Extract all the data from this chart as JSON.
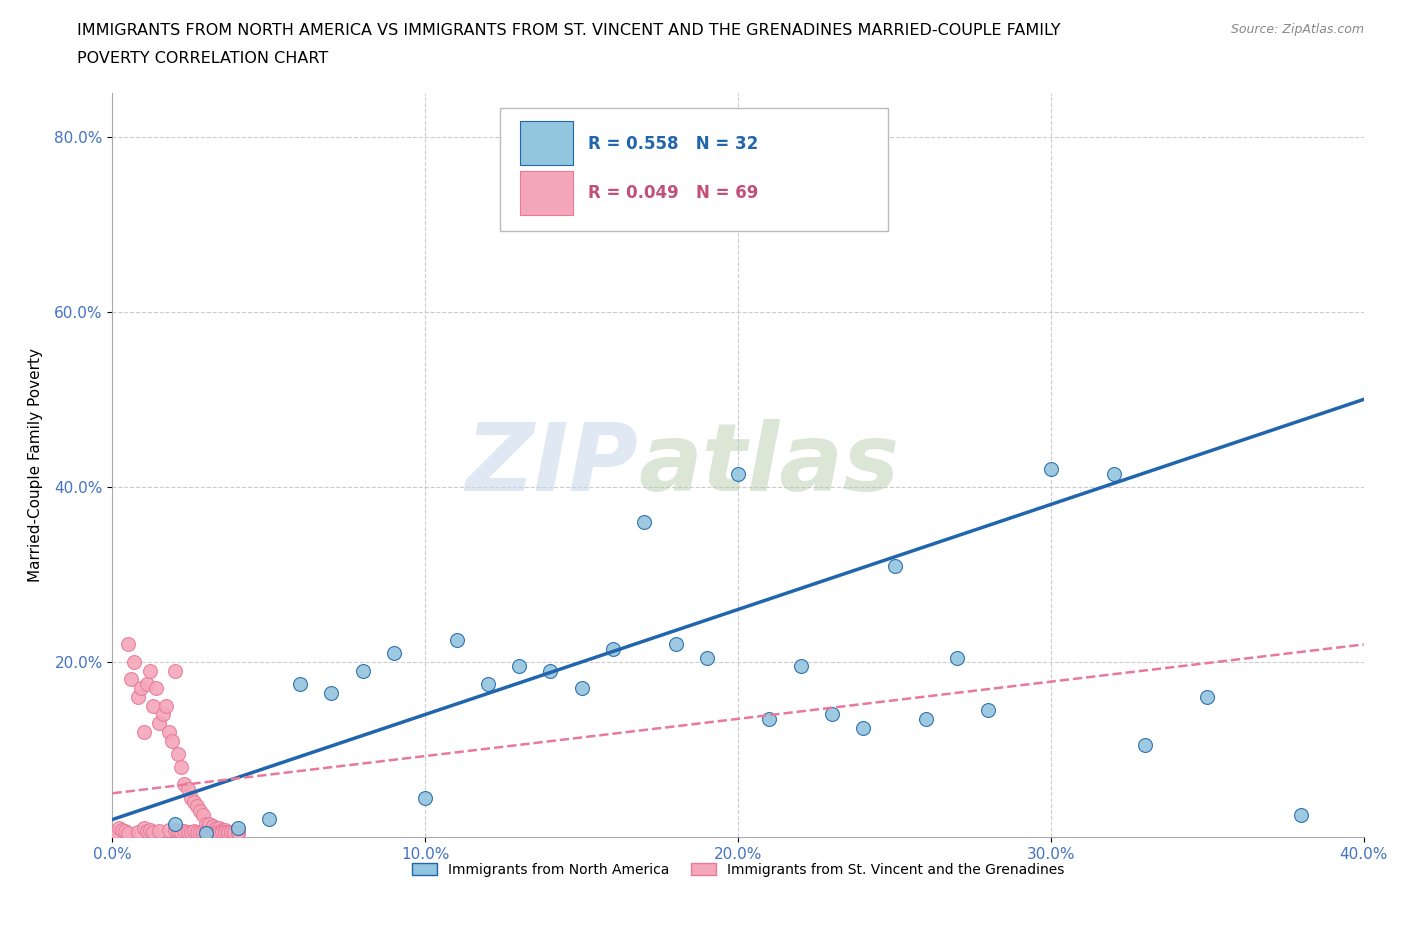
{
  "title_line1": "IMMIGRANTS FROM NORTH AMERICA VS IMMIGRANTS FROM ST. VINCENT AND THE GRENADINES MARRIED-COUPLE FAMILY",
  "title_line2": "POVERTY CORRELATION CHART",
  "source": "Source: ZipAtlas.com",
  "ylabel": "Married-Couple Family Poverty",
  "watermark_zip": "ZIP",
  "watermark_atlas": "atlas",
  "legend_label_blue": "Immigrants from North America",
  "legend_label_pink": "Immigrants from St. Vincent and the Grenadines",
  "R_blue": 0.558,
  "N_blue": 32,
  "R_pink": 0.049,
  "N_pink": 69,
  "blue_color": "#92c5de",
  "pink_color": "#f4a7b9",
  "trendline_blue_color": "#2166ac",
  "trendline_pink_color": "#e8799a",
  "xlim": [
    0.0,
    0.4
  ],
  "ylim": [
    0.0,
    0.85
  ],
  "xtick_labels": [
    "0.0%",
    "10.0%",
    "20.0%",
    "30.0%",
    "40.0%"
  ],
  "xtick_values": [
    0.0,
    0.1,
    0.2,
    0.3,
    0.4
  ],
  "ytick_labels": [
    "20.0%",
    "40.0%",
    "60.0%",
    "80.0%"
  ],
  "ytick_values": [
    0.2,
    0.4,
    0.6,
    0.8
  ],
  "blue_scatter_x": [
    0.02,
    0.03,
    0.04,
    0.05,
    0.06,
    0.07,
    0.08,
    0.09,
    0.1,
    0.11,
    0.12,
    0.13,
    0.14,
    0.15,
    0.16,
    0.17,
    0.18,
    0.19,
    0.2,
    0.21,
    0.22,
    0.23,
    0.24,
    0.25,
    0.26,
    0.27,
    0.28,
    0.3,
    0.32,
    0.33,
    0.35,
    0.38
  ],
  "blue_scatter_y": [
    0.015,
    0.005,
    0.01,
    0.02,
    0.175,
    0.165,
    0.19,
    0.21,
    0.045,
    0.225,
    0.175,
    0.195,
    0.19,
    0.17,
    0.215,
    0.36,
    0.22,
    0.205,
    0.415,
    0.135,
    0.195,
    0.14,
    0.125,
    0.31,
    0.135,
    0.205,
    0.145,
    0.42,
    0.415,
    0.105,
    0.16,
    0.025
  ],
  "pink_scatter_x": [
    0.001,
    0.002,
    0.003,
    0.004,
    0.005,
    0.005,
    0.006,
    0.007,
    0.008,
    0.008,
    0.009,
    0.01,
    0.01,
    0.011,
    0.011,
    0.012,
    0.012,
    0.013,
    0.013,
    0.014,
    0.015,
    0.015,
    0.016,
    0.017,
    0.018,
    0.018,
    0.019,
    0.02,
    0.02,
    0.021,
    0.021,
    0.022,
    0.022,
    0.023,
    0.023,
    0.024,
    0.024,
    0.025,
    0.025,
    0.026,
    0.026,
    0.027,
    0.027,
    0.028,
    0.028,
    0.029,
    0.029,
    0.03,
    0.03,
    0.031,
    0.031,
    0.032,
    0.032,
    0.033,
    0.033,
    0.034,
    0.034,
    0.035,
    0.035,
    0.036,
    0.036,
    0.037,
    0.037,
    0.038,
    0.038,
    0.039,
    0.039,
    0.04,
    0.04
  ],
  "pink_scatter_y": [
    0.005,
    0.01,
    0.008,
    0.007,
    0.22,
    0.005,
    0.18,
    0.2,
    0.16,
    0.006,
    0.17,
    0.01,
    0.12,
    0.175,
    0.007,
    0.19,
    0.008,
    0.15,
    0.006,
    0.17,
    0.13,
    0.007,
    0.14,
    0.15,
    0.12,
    0.008,
    0.11,
    0.19,
    0.008,
    0.095,
    0.007,
    0.08,
    0.006,
    0.06,
    0.007,
    0.055,
    0.006,
    0.045,
    0.006,
    0.04,
    0.007,
    0.035,
    0.006,
    0.03,
    0.006,
    0.025,
    0.006,
    0.015,
    0.007,
    0.015,
    0.006,
    0.012,
    0.006,
    0.01,
    0.006,
    0.01,
    0.006,
    0.008,
    0.006,
    0.008,
    0.006,
    0.006,
    0.006,
    0.006,
    0.006,
    0.005,
    0.006,
    0.005,
    0.006
  ],
  "blue_trendline_x": [
    0.0,
    0.4
  ],
  "blue_trendline_y": [
    0.02,
    0.5
  ],
  "pink_trendline_x": [
    0.0,
    0.4
  ],
  "pink_trendline_y": [
    0.05,
    0.22
  ]
}
